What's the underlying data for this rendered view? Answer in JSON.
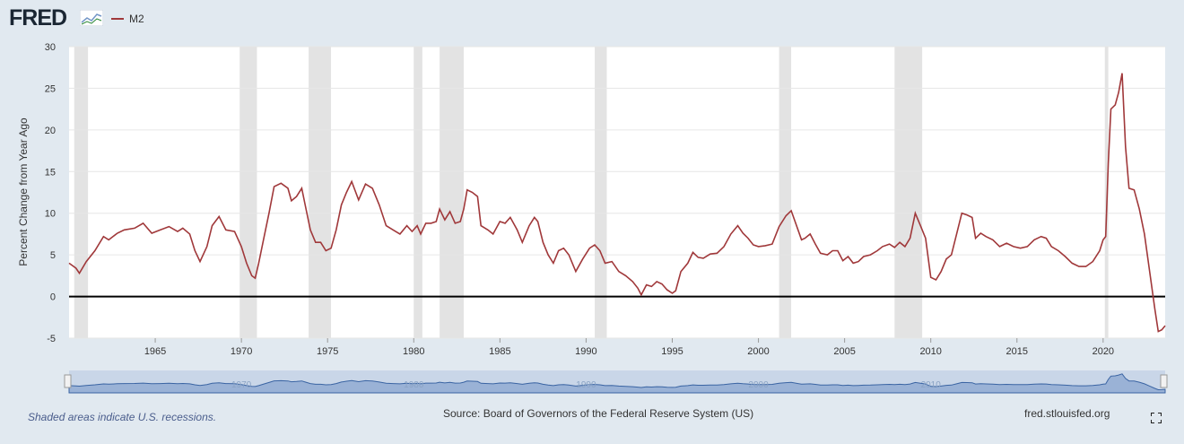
{
  "header": {
    "logo_text": "FRED",
    "series_label": "M2"
  },
  "colors": {
    "series": "#a0383a",
    "recession": "#e3e3e3",
    "zero_line": "#000000",
    "navigator_fill": "#7396c7"
  },
  "footer": {
    "recession_note": "Shaded areas indicate U.S. recessions.",
    "source": "Source: Board of Governors of the Federal Reserve System (US)",
    "site": "fred.stlouisfed.org"
  },
  "chart_data": {
    "type": "line",
    "title": "",
    "series_name": "M2",
    "ylabel": "Percent Change from Year Ago",
    "xlabel": "",
    "xlim": [
      1960.0,
      2023.6
    ],
    "ylim": [
      -5,
      30
    ],
    "yticks": [
      -5,
      0,
      5,
      10,
      15,
      20,
      25,
      30
    ],
    "xticks": [
      1965,
      1970,
      1975,
      1980,
      1985,
      1990,
      1995,
      2000,
      2005,
      2010,
      2015,
      2020
    ],
    "navigator_ticks": [
      1970,
      1980,
      1990,
      2000,
      2010
    ],
    "recessions": [
      [
        1960.3,
        1961.1
      ],
      [
        1969.9,
        1970.9
      ],
      [
        1973.9,
        1975.2
      ],
      [
        1980.0,
        1980.5
      ],
      [
        1981.5,
        1982.9
      ],
      [
        1990.5,
        1991.2
      ],
      [
        2001.2,
        2001.9
      ],
      [
        2007.9,
        2009.5
      ],
      [
        2020.1,
        2020.3
      ]
    ],
    "points": [
      [
        1960.0,
        4.0
      ],
      [
        1960.4,
        3.4
      ],
      [
        1960.6,
        2.8
      ],
      [
        1961.0,
        4.2
      ],
      [
        1961.5,
        5.5
      ],
      [
        1962.0,
        7.2
      ],
      [
        1962.3,
        6.8
      ],
      [
        1962.8,
        7.6
      ],
      [
        1963.2,
        8.0
      ],
      [
        1963.8,
        8.2
      ],
      [
        1964.3,
        8.8
      ],
      [
        1964.8,
        7.6
      ],
      [
        1965.3,
        8.0
      ],
      [
        1965.8,
        8.4
      ],
      [
        1966.3,
        7.8
      ],
      [
        1966.6,
        8.2
      ],
      [
        1967.0,
        7.5
      ],
      [
        1967.3,
        5.5
      ],
      [
        1967.6,
        4.2
      ],
      [
        1968.0,
        6.0
      ],
      [
        1968.3,
        8.5
      ],
      [
        1968.7,
        9.6
      ],
      [
        1969.1,
        8.0
      ],
      [
        1969.6,
        7.8
      ],
      [
        1970.0,
        6.0
      ],
      [
        1970.3,
        4.0
      ],
      [
        1970.6,
        2.5
      ],
      [
        1970.8,
        2.2
      ],
      [
        1971.0,
        4.0
      ],
      [
        1971.3,
        7.0
      ],
      [
        1971.6,
        10.0
      ],
      [
        1971.9,
        13.2
      ],
      [
        1972.3,
        13.6
      ],
      [
        1972.7,
        13.0
      ],
      [
        1972.9,
        11.5
      ],
      [
        1973.2,
        12.0
      ],
      [
        1973.5,
        13.0
      ],
      [
        1973.7,
        11.0
      ],
      [
        1974.0,
        8.0
      ],
      [
        1974.3,
        6.5
      ],
      [
        1974.6,
        6.5
      ],
      [
        1974.9,
        5.5
      ],
      [
        1975.2,
        5.8
      ],
      [
        1975.5,
        8.0
      ],
      [
        1975.8,
        11.0
      ],
      [
        1976.1,
        12.5
      ],
      [
        1976.4,
        13.8
      ],
      [
        1976.8,
        11.6
      ],
      [
        1977.2,
        13.5
      ],
      [
        1977.6,
        13.0
      ],
      [
        1978.0,
        11.0
      ],
      [
        1978.4,
        8.5
      ],
      [
        1978.8,
        8.0
      ],
      [
        1979.2,
        7.5
      ],
      [
        1979.6,
        8.5
      ],
      [
        1979.9,
        7.8
      ],
      [
        1980.2,
        8.5
      ],
      [
        1980.4,
        7.5
      ],
      [
        1980.7,
        8.8
      ],
      [
        1981.0,
        8.8
      ],
      [
        1981.3,
        9.0
      ],
      [
        1981.5,
        10.5
      ],
      [
        1981.8,
        9.2
      ],
      [
        1982.1,
        10.2
      ],
      [
        1982.4,
        8.8
      ],
      [
        1982.7,
        9.0
      ],
      [
        1982.9,
        10.5
      ],
      [
        1983.1,
        12.8
      ],
      [
        1983.4,
        12.5
      ],
      [
        1983.7,
        12.0
      ],
      [
        1983.9,
        8.5
      ],
      [
        1984.3,
        8.0
      ],
      [
        1984.6,
        7.5
      ],
      [
        1985.0,
        9.0
      ],
      [
        1985.3,
        8.8
      ],
      [
        1985.6,
        9.5
      ],
      [
        1986.0,
        8.0
      ],
      [
        1986.3,
        6.5
      ],
      [
        1986.7,
        8.5
      ],
      [
        1987.0,
        9.5
      ],
      [
        1987.2,
        9.0
      ],
      [
        1987.5,
        6.5
      ],
      [
        1987.8,
        5.0
      ],
      [
        1988.1,
        4.0
      ],
      [
        1988.4,
        5.5
      ],
      [
        1988.7,
        5.8
      ],
      [
        1989.0,
        5.0
      ],
      [
        1989.4,
        3.0
      ],
      [
        1989.8,
        4.5
      ],
      [
        1990.2,
        5.8
      ],
      [
        1990.5,
        6.2
      ],
      [
        1990.8,
        5.5
      ],
      [
        1991.1,
        4.0
      ],
      [
        1991.5,
        4.2
      ],
      [
        1991.9,
        3.0
      ],
      [
        1992.3,
        2.5
      ],
      [
        1992.7,
        1.8
      ],
      [
        1993.0,
        1.0
      ],
      [
        1993.2,
        0.2
      ],
      [
        1993.5,
        1.4
      ],
      [
        1993.8,
        1.2
      ],
      [
        1994.1,
        1.8
      ],
      [
        1994.4,
        1.5
      ],
      [
        1994.7,
        0.8
      ],
      [
        1995.0,
        0.4
      ],
      [
        1995.2,
        0.7
      ],
      [
        1995.5,
        3.0
      ],
      [
        1995.9,
        4.0
      ],
      [
        1996.2,
        5.3
      ],
      [
        1996.5,
        4.7
      ],
      [
        1996.8,
        4.6
      ],
      [
        1997.2,
        5.1
      ],
      [
        1997.6,
        5.2
      ],
      [
        1998.0,
        6.0
      ],
      [
        1998.4,
        7.5
      ],
      [
        1998.8,
        8.5
      ],
      [
        1999.1,
        7.6
      ],
      [
        1999.4,
        7.0
      ],
      [
        1999.7,
        6.2
      ],
      [
        2000.0,
        6.0
      ],
      [
        2000.4,
        6.1
      ],
      [
        2000.8,
        6.3
      ],
      [
        2001.2,
        8.4
      ],
      [
        2001.6,
        9.7
      ],
      [
        2001.9,
        10.3
      ],
      [
        2002.3,
        8.0
      ],
      [
        2002.5,
        6.8
      ],
      [
        2002.7,
        7.0
      ],
      [
        2003.0,
        7.5
      ],
      [
        2003.3,
        6.3
      ],
      [
        2003.6,
        5.2
      ],
      [
        2004.0,
        5.0
      ],
      [
        2004.3,
        5.5
      ],
      [
        2004.6,
        5.5
      ],
      [
        2004.9,
        4.3
      ],
      [
        2005.2,
        4.8
      ],
      [
        2005.5,
        4.0
      ],
      [
        2005.8,
        4.2
      ],
      [
        2006.1,
        4.8
      ],
      [
        2006.5,
        5.0
      ],
      [
        2006.9,
        5.5
      ],
      [
        2007.2,
        6.0
      ],
      [
        2007.6,
        6.3
      ],
      [
        2007.9,
        5.9
      ],
      [
        2008.2,
        6.5
      ],
      [
        2008.5,
        6.0
      ],
      [
        2008.8,
        7.0
      ],
      [
        2009.1,
        10.0
      ],
      [
        2009.4,
        8.5
      ],
      [
        2009.7,
        7.0
      ],
      [
        2010.0,
        2.3
      ],
      [
        2010.3,
        2.0
      ],
      [
        2010.6,
        3.0
      ],
      [
        2010.9,
        4.5
      ],
      [
        2011.2,
        5.0
      ],
      [
        2011.5,
        7.5
      ],
      [
        2011.8,
        10.0
      ],
      [
        2012.1,
        9.8
      ],
      [
        2012.4,
        9.5
      ],
      [
        2012.6,
        7.0
      ],
      [
        2012.9,
        7.6
      ],
      [
        2013.2,
        7.2
      ],
      [
        2013.6,
        6.8
      ],
      [
        2014.0,
        6.0
      ],
      [
        2014.4,
        6.4
      ],
      [
        2014.8,
        6.0
      ],
      [
        2015.2,
        5.8
      ],
      [
        2015.6,
        6.0
      ],
      [
        2016.0,
        6.8
      ],
      [
        2016.4,
        7.2
      ],
      [
        2016.7,
        7.0
      ],
      [
        2017.0,
        6.0
      ],
      [
        2017.4,
        5.5
      ],
      [
        2017.8,
        4.8
      ],
      [
        2018.2,
        4.0
      ],
      [
        2018.6,
        3.6
      ],
      [
        2019.0,
        3.6
      ],
      [
        2019.4,
        4.2
      ],
      [
        2019.8,
        5.5
      ],
      [
        2020.0,
        6.8
      ],
      [
        2020.15,
        7.2
      ],
      [
        2020.3,
        16.0
      ],
      [
        2020.45,
        22.5
      ],
      [
        2020.7,
        23.0
      ],
      [
        2020.9,
        24.5
      ],
      [
        2021.1,
        26.8
      ],
      [
        2021.3,
        18.0
      ],
      [
        2021.5,
        13.0
      ],
      [
        2021.8,
        12.8
      ],
      [
        2022.1,
        10.5
      ],
      [
        2022.4,
        7.5
      ],
      [
        2022.7,
        3.0
      ],
      [
        2023.0,
        -1.5
      ],
      [
        2023.2,
        -4.2
      ],
      [
        2023.4,
        -4.0
      ],
      [
        2023.6,
        -3.5
      ]
    ]
  }
}
